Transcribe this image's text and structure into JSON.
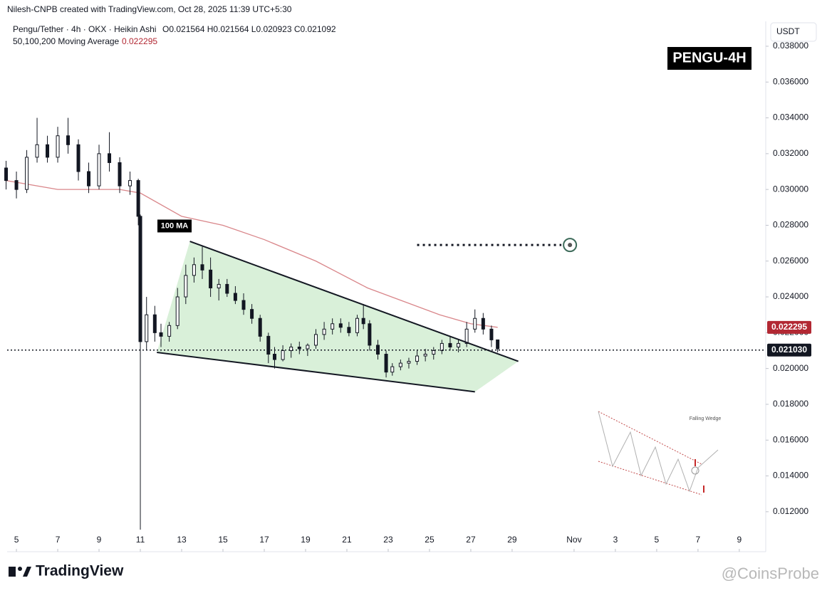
{
  "header": {
    "credit": "Nilesh-CNPB created with TradingView.com, Oct 28, 2025 11:39 UTC+5:30",
    "symbol": "Pengu/Tether · 4h · OKX · Heikin Ashi",
    "ohlc": "O0.021564 H0.021564 L0.020923 C0.021092",
    "indicator": "50,100,200 Moving Average",
    "indicator_value": "0.022295",
    "currency": "USDT",
    "brand": "TradingView",
    "watermark": "@CoinsProbe"
  },
  "chart_data": {
    "type": "candlestick",
    "title": "PENGU-4H",
    "x": [
      4.5,
      5.0,
      5.5,
      6.0,
      6.5,
      7.0,
      7.5,
      8.0,
      8.5,
      9.0,
      9.5,
      10.0,
      10.5,
      10.9,
      11.0,
      11.3,
      11.7,
      12.0,
      12.4,
      12.8,
      13.2,
      13.6,
      14.0,
      14.4,
      14.8,
      15.2,
      15.6,
      16.0,
      16.4,
      16.8,
      17.2,
      17.5,
      17.9,
      18.3,
      18.7,
      19.1,
      19.5,
      19.9,
      20.3,
      20.7,
      21.1,
      21.5,
      21.8,
      22.1,
      22.5,
      22.9,
      23.2,
      23.6,
      24.0,
      24.4,
      24.8,
      25.2,
      25.6,
      26.0,
      26.4,
      26.8,
      27.2,
      27.6,
      28.0,
      28.3
    ],
    "open": [
      0.0312,
      0.0305,
      0.03,
      0.0318,
      0.0325,
      0.0318,
      0.033,
      0.0325,
      0.031,
      0.0302,
      0.032,
      0.0315,
      0.0302,
      0.0305,
      0.0285,
      0.0215,
      0.023,
      0.022,
      0.0218,
      0.0224,
      0.024,
      0.0252,
      0.0258,
      0.0255,
      0.0245,
      0.0247,
      0.0242,
      0.0238,
      0.0233,
      0.0228,
      0.0218,
      0.0208,
      0.0205,
      0.021,
      0.0212,
      0.0211,
      0.0213,
      0.0219,
      0.0222,
      0.0225,
      0.0223,
      0.022,
      0.0228,
      0.0225,
      0.0213,
      0.0208,
      0.0198,
      0.0201,
      0.0203,
      0.0204,
      0.0207,
      0.0208,
      0.021,
      0.0214,
      0.0212,
      0.0214,
      0.0222,
      0.0228,
      0.0222,
      0.0216
    ],
    "high": [
      0.0316,
      0.031,
      0.0322,
      0.034,
      0.033,
      0.0335,
      0.034,
      0.0328,
      0.0315,
      0.0325,
      0.0332,
      0.0318,
      0.031,
      0.0306,
      0.0286,
      0.024,
      0.0235,
      0.0225,
      0.0226,
      0.0245,
      0.0258,
      0.0262,
      0.0268,
      0.0262,
      0.025,
      0.025,
      0.0246,
      0.0242,
      0.0236,
      0.023,
      0.022,
      0.0212,
      0.0213,
      0.0214,
      0.0215,
      0.0214,
      0.0222,
      0.0226,
      0.0228,
      0.0228,
      0.0226,
      0.023,
      0.0236,
      0.0227,
      0.0216,
      0.021,
      0.0203,
      0.0205,
      0.0206,
      0.021,
      0.0211,
      0.0212,
      0.0216,
      0.0218,
      0.0216,
      0.0226,
      0.0233,
      0.0231,
      0.0224,
      0.0216
    ],
    "low": [
      0.03,
      0.0295,
      0.0298,
      0.0315,
      0.0315,
      0.0315,
      0.032,
      0.0305,
      0.0298,
      0.03,
      0.031,
      0.0298,
      0.0297,
      0.028,
      0.011,
      0.021,
      0.0215,
      0.0212,
      0.0215,
      0.0222,
      0.0236,
      0.0248,
      0.025,
      0.024,
      0.0238,
      0.024,
      0.0236,
      0.023,
      0.0225,
      0.0215,
      0.0203,
      0.02,
      0.0204,
      0.0206,
      0.0208,
      0.0207,
      0.0211,
      0.0216,
      0.0219,
      0.022,
      0.0218,
      0.0218,
      0.0222,
      0.021,
      0.0205,
      0.0195,
      0.0196,
      0.0199,
      0.02,
      0.0202,
      0.0204,
      0.0205,
      0.0208,
      0.021,
      0.0209,
      0.0212,
      0.022,
      0.0219,
      0.0212,
      0.0209
    ],
    "close": [
      0.0305,
      0.03,
      0.0318,
      0.0325,
      0.0318,
      0.033,
      0.0325,
      0.031,
      0.0302,
      0.032,
      0.0315,
      0.0302,
      0.0305,
      0.0285,
      0.0215,
      0.023,
      0.022,
      0.0218,
      0.0224,
      0.024,
      0.0252,
      0.0258,
      0.0255,
      0.0245,
      0.0247,
      0.0242,
      0.0238,
      0.0233,
      0.0228,
      0.0218,
      0.0208,
      0.0205,
      0.021,
      0.0212,
      0.0211,
      0.0213,
      0.0219,
      0.0222,
      0.0225,
      0.0223,
      0.022,
      0.0228,
      0.0225,
      0.0213,
      0.0208,
      0.0198,
      0.0201,
      0.0203,
      0.0204,
      0.0207,
      0.0208,
      0.021,
      0.0214,
      0.0212,
      0.0214,
      0.0222,
      0.0228,
      0.0222,
      0.0216,
      0.0211
    ],
    "ma": {
      "name": "100 MA",
      "color": "#d9868a",
      "x": [
        4.5,
        7,
        10,
        11,
        13,
        15,
        17,
        19.5,
        22,
        25.5,
        27,
        28.3
      ],
      "values": [
        0.0305,
        0.03,
        0.03,
        0.0298,
        0.0285,
        0.028,
        0.0272,
        0.026,
        0.0245,
        0.023,
        0.0225,
        0.0223
      ]
    },
    "wedge": {
      "upper": {
        "x": [
          13.4,
          29.3
        ],
        "values": [
          0.0271,
          0.0204
        ]
      },
      "lower": {
        "x": [
          11.8,
          27.2
        ],
        "values": [
          0.0209,
          0.0187
        ]
      }
    },
    "target": {
      "x": [
        24.4,
        31.8
      ],
      "value": 0.0269
    },
    "price_tags": [
      {
        "value": 0.022295,
        "label": "0.022295",
        "color": "#b22833"
      },
      {
        "value": 0.02103,
        "label": "0.021030",
        "color": "#131722"
      }
    ],
    "inset_title": "Falling Wedge",
    "xlim": [
      4.55,
      41.28
    ],
    "ylim": [
      0.01096,
      0.03939
    ],
    "xticks": [
      5,
      7,
      9,
      11,
      13,
      15,
      17,
      19,
      21,
      23,
      25,
      27,
      29,
      {
        "value": 32,
        "label": "Nov"
      },
      {
        "value": 34,
        "label": "3"
      },
      {
        "value": 36,
        "label": "5"
      },
      {
        "value": 38,
        "label": "7"
      },
      {
        "value": 40,
        "label": "9"
      }
    ],
    "yticks": [
      {
        "value": 0.012,
        "label": "0.012000"
      },
      {
        "value": 0.014,
        "label": "0.014000"
      },
      {
        "value": 0.016,
        "label": "0.016000"
      },
      {
        "value": 0.018,
        "label": "0.018000"
      },
      {
        "value": 0.02,
        "label": "0.020000"
      },
      {
        "value": 0.022,
        "label": "0.022000"
      },
      {
        "value": 0.024,
        "label": "0.024000"
      },
      {
        "value": 0.026,
        "label": "0.026000"
      },
      {
        "value": 0.028,
        "label": "0.028000"
      },
      {
        "value": 0.03,
        "label": "0.030000"
      },
      {
        "value": 0.032,
        "label": "0.032000"
      },
      {
        "value": 0.034,
        "label": "0.034000"
      },
      {
        "value": 0.036,
        "label": "0.036000"
      },
      {
        "value": 0.038,
        "label": "0.038000"
      }
    ]
  }
}
